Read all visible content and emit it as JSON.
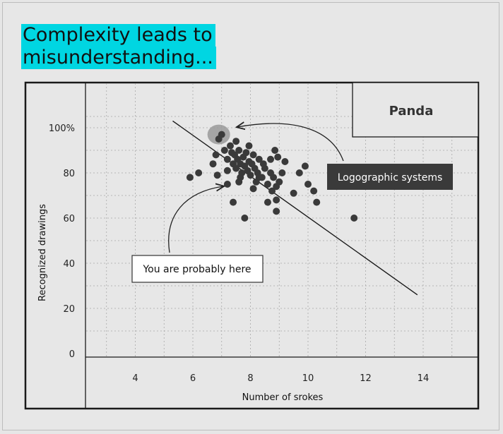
{
  "title": {
    "line1": "Complexity leads to",
    "line2": "misunderstanding..."
  },
  "colors": {
    "title_highlight": "#00d6e2",
    "point": "#3a3a3a",
    "cluster_halo": "#999999",
    "callout_dark_bg": "#3a3a3a",
    "background": "#e6e6e6"
  },
  "chart_data": {
    "type": "scatter",
    "xlabel": "Number of srokes",
    "ylabel": "Recognized drawings",
    "x_ticks": [
      "4",
      "6",
      "8",
      "10",
      "12",
      "14"
    ],
    "y_ticks": [
      "0",
      "20",
      "40",
      "60",
      "80",
      "100%"
    ],
    "xlim": [
      2,
      16
    ],
    "ylim": [
      0,
      110
    ],
    "grid": true,
    "legend_box": "Panda",
    "points": [
      [
        5.9,
        78
      ],
      [
        6.2,
        80
      ],
      [
        6.7,
        84
      ],
      [
        6.8,
        88
      ],
      [
        6.9,
        95
      ],
      [
        7.0,
        97
      ],
      [
        7.1,
        90
      ],
      [
        7.2,
        86
      ],
      [
        7.3,
        92
      ],
      [
        7.35,
        89
      ],
      [
        7.4,
        84
      ],
      [
        7.45,
        88
      ],
      [
        7.5,
        82
      ],
      [
        7.55,
        86
      ],
      [
        7.6,
        90
      ],
      [
        7.65,
        84
      ],
      [
        7.7,
        80
      ],
      [
        7.75,
        87
      ],
      [
        7.8,
        83
      ],
      [
        7.85,
        89
      ],
      [
        7.9,
        81
      ],
      [
        7.95,
        85
      ],
      [
        8.0,
        79
      ],
      [
        8.05,
        84
      ],
      [
        8.1,
        88
      ],
      [
        8.15,
        82
      ],
      [
        8.2,
        76
      ],
      [
        8.25,
        80
      ],
      [
        8.3,
        86
      ],
      [
        8.4,
        78
      ],
      [
        8.5,
        82
      ],
      [
        8.6,
        75
      ],
      [
        8.7,
        80
      ],
      [
        8.75,
        72
      ],
      [
        8.8,
        78
      ],
      [
        8.9,
        74
      ],
      [
        9.0,
        76
      ],
      [
        9.2,
        85
      ],
      [
        8.9,
        68
      ],
      [
        9.5,
        71
      ],
      [
        9.7,
        80
      ],
      [
        9.9,
        83
      ],
      [
        10.0,
        75
      ],
      [
        10.2,
        72
      ],
      [
        10.3,
        67
      ],
      [
        8.85,
        90
      ],
      [
        8.95,
        87
      ],
      [
        7.2,
        75
      ],
      [
        7.6,
        76
      ],
      [
        8.3,
        78
      ],
      [
        6.85,
        79
      ],
      [
        7.4,
        67
      ],
      [
        8.6,
        67
      ],
      [
        8.9,
        63
      ],
      [
        7.8,
        60
      ],
      [
        11.6,
        60
      ],
      [
        9.1,
        80
      ],
      [
        7.95,
        92
      ],
      [
        8.1,
        73
      ],
      [
        7.65,
        78
      ],
      [
        7.2,
        81
      ],
      [
        8.45,
        84
      ],
      [
        8.7,
        86
      ],
      [
        7.5,
        94
      ]
    ],
    "trend_line": [
      [
        5.3,
        103
      ],
      [
        13.8,
        26
      ]
    ],
    "halo_center": [
      6.9,
      97
    ],
    "annotations": [
      {
        "text": "Logographic systems",
        "target": [
          7.0,
          100
        ]
      },
      {
        "text": "You are probably here",
        "target": [
          7.2,
          77
        ]
      }
    ]
  }
}
